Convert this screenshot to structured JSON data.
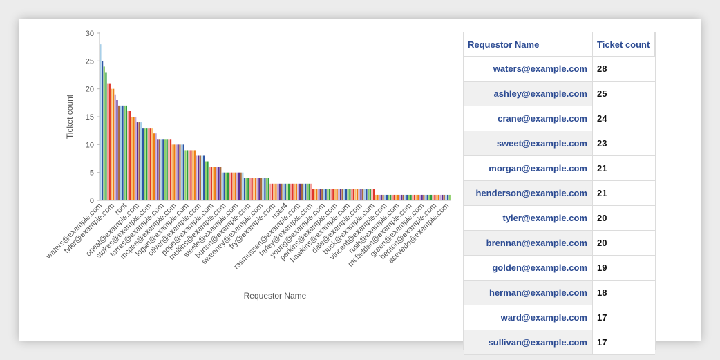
{
  "chart_data": {
    "type": "bar",
    "xlabel": "Requestor Name",
    "ylabel": "Ticket count",
    "ylim": [
      0,
      30
    ],
    "yticks": [
      0,
      5,
      10,
      15,
      20,
      25,
      30
    ],
    "tick_labels": [
      "waters@example.com",
      "tyler@example.com",
      "root",
      "oneal@example.com",
      "stokes@example.com",
      "torres@example.com",
      "mcgee@example.com",
      "logan@example.com",
      "oliver@example.com",
      "pope@example.com",
      "mullins@example.com",
      "steele@example.com",
      "burton@example.com",
      "sweeney@example.com",
      "fry@example.com",
      "user4",
      "rasmussen@example.com",
      "farley@example.com",
      "young@example.com",
      "perkins@example.com",
      "hawkins@example.com",
      "dale@example.com",
      "buck@example.com",
      "vincent@example.com",
      "rush@example.com",
      "mcfadden@example.com",
      "green@example.com",
      "benton@example.com",
      "acevedo@example.com"
    ],
    "values": [
      28,
      25,
      24,
      23,
      21,
      21,
      20,
      20,
      19,
      18,
      17,
      17,
      17,
      17,
      17,
      16,
      16,
      15,
      15,
      15,
      14,
      14,
      14,
      13,
      13,
      13,
      13,
      13,
      13,
      12,
      12,
      11,
      11,
      11,
      11,
      11,
      11,
      11,
      11,
      10,
      10,
      10,
      10,
      10,
      10,
      10,
      9,
      9,
      9,
      9,
      9,
      9,
      8,
      8,
      8,
      8,
      8,
      7,
      7,
      6,
      6,
      6,
      6,
      6,
      6,
      6,
      5,
      5,
      5,
      5,
      5,
      5,
      5,
      5,
      5,
      5,
      5,
      5,
      4,
      4,
      4,
      4,
      4,
      4,
      4,
      4,
      4,
      4,
      4,
      4,
      4,
      4,
      3,
      3,
      3,
      3,
      3,
      3,
      3,
      3,
      3,
      3,
      3,
      3,
      3,
      3,
      3,
      3,
      3,
      3,
      3,
      3,
      3,
      3,
      3,
      2,
      2,
      2,
      2,
      2,
      2,
      2,
      2,
      2,
      2,
      2,
      2,
      2,
      2,
      2,
      2,
      2,
      2,
      2,
      2,
      2,
      2,
      2,
      2,
      2,
      2,
      2,
      2,
      2,
      2,
      2,
      2,
      2,
      2,
      1,
      1,
      1,
      1,
      1,
      1,
      1,
      1,
      1,
      1,
      1,
      1,
      1,
      1,
      1,
      1,
      1,
      1,
      1,
      1,
      1,
      1,
      1,
      1,
      1,
      1,
      1,
      1,
      1,
      1,
      1,
      1,
      1,
      1,
      1,
      1,
      1,
      1,
      1,
      1,
      1
    ],
    "palette": [
      "#a8cfe8",
      "#2e55a5",
      "#8fcf6a",
      "#2e9e3e",
      "#f4a09a",
      "#e0362a",
      "#f7bf70",
      "#ee7e14",
      "#c5a9d8",
      "#5d2f93",
      "#a96b3e"
    ]
  },
  "table": {
    "headers": [
      "Requestor Name",
      "Ticket count"
    ],
    "rows": [
      {
        "name": "waters@example.com",
        "count": "28"
      },
      {
        "name": "ashley@example.com",
        "count": "25"
      },
      {
        "name": "crane@example.com",
        "count": "24"
      },
      {
        "name": "sweet@example.com",
        "count": "23"
      },
      {
        "name": "morgan@example.com",
        "count": "21"
      },
      {
        "name": "henderson@example.com",
        "count": "21"
      },
      {
        "name": "tyler@example.com",
        "count": "20"
      },
      {
        "name": "brennan@example.com",
        "count": "20"
      },
      {
        "name": "golden@example.com",
        "count": "19"
      },
      {
        "name": "herman@example.com",
        "count": "18"
      },
      {
        "name": "ward@example.com",
        "count": "17"
      },
      {
        "name": "sullivan@example.com",
        "count": "17"
      }
    ]
  }
}
